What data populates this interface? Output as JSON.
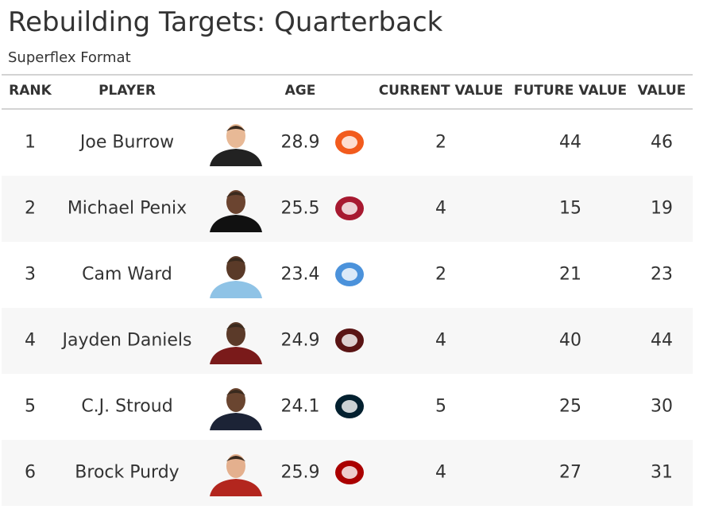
{
  "header": {
    "title": "Rebuilding Targets: Quarterback",
    "subtitle": "Superflex Format"
  },
  "table": {
    "columns": [
      "RANK",
      "PLAYER",
      "AGE",
      "CURRENT VALUE",
      "FUTURE VALUE",
      "VALUE"
    ],
    "rows": [
      [
        1,
        "Joe Burrow",
        28.9,
        2,
        44,
        46
      ],
      [
        2,
        "Michael Penix",
        25.5,
        4,
        15,
        19
      ],
      [
        3,
        "Cam Ward",
        23.4,
        2,
        21,
        23
      ],
      [
        4,
        "Jayden Daniels",
        24.9,
        4,
        40,
        44
      ],
      [
        5,
        "C.J. Stroud",
        24.1,
        5,
        25,
        30
      ],
      [
        6,
        "Brock Purdy",
        25.9,
        4,
        27,
        31
      ]
    ]
  }
}
